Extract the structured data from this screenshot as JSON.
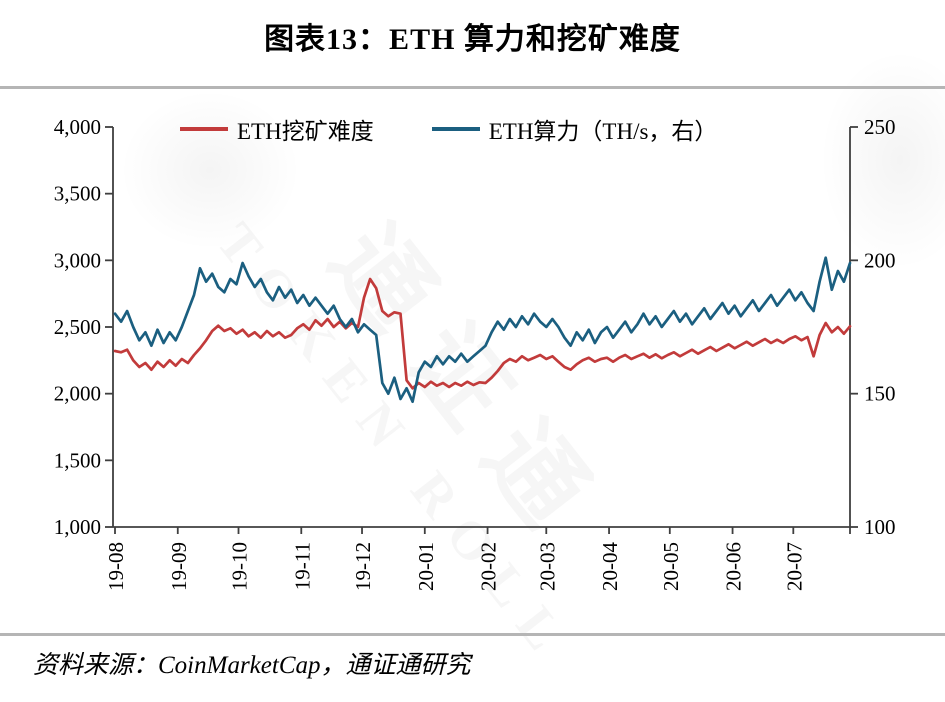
{
  "title": "图表13：ETH 算力和挖矿难度",
  "source": "资料来源：CoinMarketCap，通证通研究",
  "watermark": {
    "cn": "通证通",
    "en": "TOKEN ROLL"
  },
  "colors": {
    "difficulty": "#c23b3b",
    "hashrate": "#1b5f80",
    "axis": "#3f3f3f",
    "divider": "#b5b5b5"
  },
  "legend": [
    {
      "label": "ETH挖矿难度",
      "color": "#c23b3b"
    },
    {
      "label": "ETH算力（TH/s，右）",
      "color": "#1b5f80"
    }
  ],
  "chart_data": {
    "type": "line",
    "title": "图表13：ETH 算力和挖矿难度",
    "legend_position": "top",
    "grid": false,
    "x_unit": "days since 2019-08-01",
    "x_start": 0,
    "x_step": 3,
    "x_tick_days": [
      0,
      31,
      61,
      92,
      122,
      153,
      184,
      213,
      244,
      274,
      305,
      335
    ],
    "x_tick_labels": [
      "19-08",
      "19-09",
      "19-10",
      "19-11",
      "19-12",
      "20-01",
      "20-02",
      "20-03",
      "20-04",
      "20-05",
      "20-06",
      "20-07"
    ],
    "left_axis": {
      "min": 1000,
      "max": 4000,
      "ticks": [
        1000,
        1500,
        2000,
        2500,
        3000,
        3500,
        4000
      ],
      "tick_labels": [
        "1,000",
        "1,500",
        "2,000",
        "2,500",
        "3,000",
        "3,500",
        "4,000"
      ]
    },
    "right_axis": {
      "min": 100,
      "max": 250,
      "ticks": [
        100,
        150,
        200,
        250
      ],
      "tick_labels": [
        "100",
        "150",
        "200",
        "250"
      ]
    },
    "series": [
      {
        "name": "ETH挖矿难度",
        "axis": "left",
        "color": "#c23b3b",
        "values": [
          2320,
          2310,
          2330,
          2250,
          2200,
          2230,
          2180,
          2240,
          2200,
          2250,
          2210,
          2260,
          2230,
          2290,
          2340,
          2400,
          2470,
          2510,
          2470,
          2490,
          2450,
          2480,
          2430,
          2460,
          2420,
          2470,
          2430,
          2460,
          2420,
          2440,
          2490,
          2520,
          2480,
          2550,
          2510,
          2560,
          2500,
          2540,
          2490,
          2530,
          2500,
          2720,
          2860,
          2790,
          2620,
          2580,
          2610,
          2600,
          2100,
          2040,
          2080,
          2050,
          2090,
          2060,
          2080,
          2050,
          2080,
          2060,
          2090,
          2065,
          2085,
          2080,
          2120,
          2170,
          2230,
          2260,
          2240,
          2280,
          2250,
          2270,
          2290,
          2260,
          2280,
          2240,
          2200,
          2180,
          2220,
          2250,
          2270,
          2240,
          2260,
          2270,
          2240,
          2270,
          2290,
          2260,
          2280,
          2300,
          2270,
          2295,
          2265,
          2290,
          2310,
          2280,
          2305,
          2330,
          2300,
          2325,
          2350,
          2320,
          2345,
          2370,
          2340,
          2365,
          2390,
          2360,
          2385,
          2410,
          2380,
          2405,
          2380,
          2410,
          2430,
          2400,
          2425,
          2280,
          2440,
          2530,
          2460,
          2500,
          2450,
          2505
        ]
      },
      {
        "name": "ETH算力（TH/s，右）",
        "axis": "right",
        "color": "#1b5f80",
        "values": [
          180,
          177,
          181,
          175,
          170,
          173,
          168,
          174,
          169,
          173,
          170,
          175,
          181,
          187,
          197,
          192,
          195,
          190,
          188,
          193,
          191,
          199,
          194,
          190,
          193,
          188,
          185,
          190,
          186,
          189,
          184,
          187,
          183,
          186,
          183,
          180,
          183,
          178,
          175,
          178,
          173,
          176,
          174,
          172,
          154,
          150,
          156,
          148,
          152,
          147,
          158,
          162,
          160,
          164,
          161,
          164,
          162,
          165,
          162,
          164,
          166,
          168,
          173,
          177,
          174,
          178,
          175,
          179,
          176,
          180,
          177,
          175,
          178,
          175,
          171,
          168,
          173,
          170,
          174,
          169,
          173,
          175,
          171,
          174,
          177,
          173,
          176,
          180,
          176,
          179,
          175,
          178,
          181,
          177,
          180,
          176,
          179,
          182,
          178,
          181,
          184,
          180,
          183,
          179,
          182,
          185,
          181,
          184,
          187,
          183,
          186,
          189,
          185,
          188,
          184,
          181,
          192,
          201,
          189,
          196,
          192,
          199
        ]
      }
    ]
  }
}
